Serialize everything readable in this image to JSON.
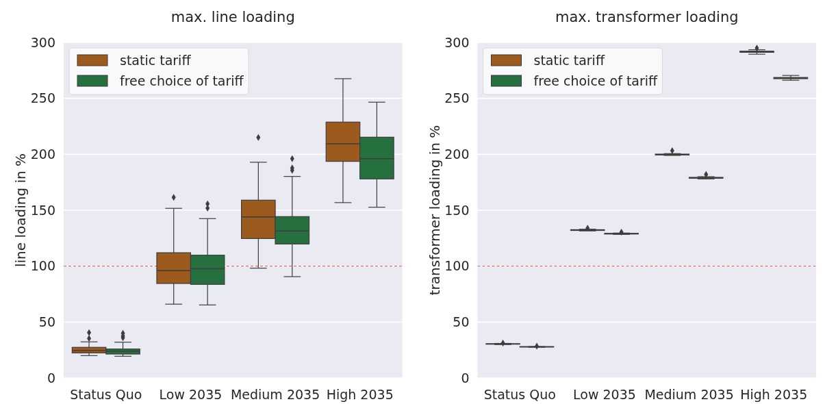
{
  "chart_data": [
    {
      "type": "box",
      "title": "max. line loading",
      "ylabel": "line loading in %",
      "categories": [
        "Status Quo",
        "Low 2035",
        "Medium 2035",
        "High 2035"
      ],
      "ylim": [
        0,
        300
      ],
      "yticks": [
        0,
        50,
        100,
        150,
        200,
        250,
        300
      ],
      "grid": "y",
      "legend": "top left",
      "marker": "diamond",
      "ref_lines": [
        {
          "axis": "y",
          "value": 100,
          "color": "#e0474c",
          "line_style": "dashed"
        }
      ],
      "series": [
        {
          "name": "static tariff",
          "color": "#9c5a1e",
          "boxes": [
            {
              "low": 20,
              "q1": 22.4,
              "median": 24.5,
              "q3": 27.4,
              "high": 32.3,
              "outliers": [
                35.3,
                40.6
              ]
            },
            {
              "low": 66,
              "q1": 84.5,
              "median": 96,
              "q3": 112,
              "high": 151.7,
              "outliers": [
                161.5
              ]
            },
            {
              "low": 98.2,
              "q1": 124.7,
              "median": 144,
              "q3": 159,
              "high": 192.9,
              "outliers": [
                215
              ]
            },
            {
              "low": 156.8,
              "q1": 193.7,
              "median": 209.4,
              "q3": 228.8,
              "high": 267.6
            }
          ]
        },
        {
          "name": "free choice of tariff",
          "color": "#26703f",
          "boxes": [
            {
              "low": 19.4,
              "q1": 21.4,
              "median": 24.1,
              "q3": 25.9,
              "high": 32,
              "outliers": [
                36,
                37.5,
                40
              ]
            },
            {
              "low": 65.3,
              "q1": 83.7,
              "median": 97.6,
              "q3": 109.8,
              "high": 142.5,
              "outliers": [
                151.9,
                155.7
              ]
            },
            {
              "low": 90.6,
              "q1": 119.8,
              "median": 131.5,
              "q3": 144.3,
              "high": 180.2,
              "outliers": [
                185.7,
                187.8,
                196
              ]
            },
            {
              "low": 152.7,
              "q1": 178,
              "median": 196.1,
              "q3": 215.3,
              "high": 246.6
            }
          ]
        }
      ]
    },
    {
      "type": "box",
      "title": "max. transformer loading",
      "ylabel": "transformer loading in %",
      "categories": [
        "Status Quo",
        "Low 2035",
        "Medium 2035",
        "High 2035"
      ],
      "ylim": [
        0,
        300
      ],
      "yticks": [
        0,
        50,
        100,
        150,
        200,
        250,
        300
      ],
      "grid": "y",
      "legend": "top left",
      "marker": "diamond",
      "ref_lines": [
        {
          "axis": "y",
          "value": 100,
          "color": "#e0474c",
          "line_style": "dashed"
        }
      ],
      "series": [
        {
          "name": "static tariff",
          "color": "#9c5a1e",
          "boxes": [
            {
              "low": 29.9,
              "q1": 30.2,
              "median": 30.4,
              "q3": 30.6,
              "high": 30.9,
              "outliers": [
                31.2
              ]
            },
            {
              "low": 131.5,
              "q1": 131.9,
              "median": 132.2,
              "q3": 132.6,
              "high": 133,
              "outliers": [
                133.9
              ]
            },
            {
              "low": 199,
              "q1": 199.4,
              "median": 199.8,
              "q3": 200.2,
              "high": 200.6,
              "outliers": [
                203.3
              ]
            },
            {
              "low": 289.5,
              "q1": 291.2,
              "median": 291.7,
              "q3": 292.2,
              "high": 293.5,
              "outliers": [
                295
              ]
            }
          ]
        },
        {
          "name": "free choice of tariff",
          "color": "#26703f",
          "boxes": [
            {
              "low": 27.5,
              "q1": 27.7,
              "median": 27.8,
              "q3": 28,
              "high": 28.1,
              "outliers": [
                28.4
              ]
            },
            {
              "low": 128.4,
              "q1": 128.7,
              "median": 129,
              "q3": 129.3,
              "high": 129.6,
              "outliers": [
                130.4
              ]
            },
            {
              "low": 178,
              "q1": 178.6,
              "median": 179,
              "q3": 179.4,
              "high": 180,
              "outliers": [
                182
              ]
            },
            {
              "low": 266.2,
              "q1": 267.6,
              "median": 268.2,
              "q3": 268.7,
              "high": 270.5
            }
          ]
        }
      ]
    }
  ]
}
